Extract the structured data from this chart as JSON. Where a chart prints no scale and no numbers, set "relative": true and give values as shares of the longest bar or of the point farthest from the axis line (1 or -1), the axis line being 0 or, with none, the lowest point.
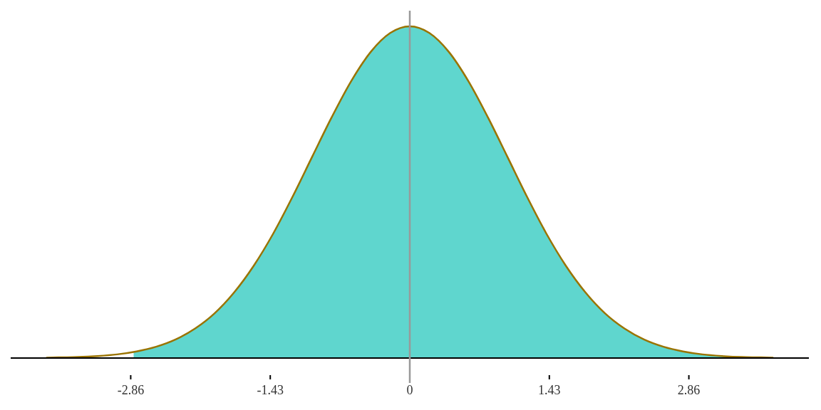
{
  "chart_data": {
    "type": "area",
    "relative": true,
    "xlim": [
      -4.09,
      4.09
    ],
    "xticks": [
      -2.86,
      -1.43,
      0,
      1.43,
      2.86
    ],
    "series": [
      {
        "color": "#5fd6ce",
        "x": [
          -2.83,
          -2.6,
          -2.4,
          -2.2,
          -2.0,
          -1.8,
          -1.6,
          -1.4,
          -1.2,
          -1.0,
          -0.8,
          -0.6,
          -0.4,
          -0.2,
          0,
          0.2,
          0.4,
          0.6,
          0.8,
          1.0,
          1.2,
          1.4,
          1.6,
          1.8,
          2.0,
          2.2,
          2.4,
          2.6,
          2.8,
          3.0,
          3.2,
          3.4,
          3.6,
          3.72
        ],
        "values": [
          0.018,
          0.034,
          0.056,
          0.089,
          0.135,
          0.198,
          0.278,
          0.375,
          0.487,
          0.607,
          0.726,
          0.835,
          0.923,
          0.98,
          1,
          0.98,
          0.923,
          0.835,
          0.726,
          0.607,
          0.487,
          0.375,
          0.278,
          0.198,
          0.135,
          0.089,
          0.056,
          0.034,
          0.02,
          0.011,
          0.006,
          0.003,
          0.002,
          0.001
        ]
      },
      {
        "type": "line",
        "color": "#9a7300",
        "x": [
          -3.72,
          -3.6,
          -3.4,
          -3.2,
          -3.0,
          -2.8,
          -2.6,
          -2.4,
          -2.2,
          -2.0,
          -1.8,
          -1.6,
          -1.4,
          -1.2,
          -1.0,
          -0.8,
          -0.6,
          -0.4,
          -0.2,
          0,
          0.2,
          0.4,
          0.6,
          0.8,
          1.0,
          1.2,
          1.4,
          1.6,
          1.8,
          2.0,
          2.2,
          2.4,
          2.6,
          2.8,
          3.0,
          3.2,
          3.4,
          3.6,
          3.72
        ],
        "values": [
          0.001,
          0.002,
          0.003,
          0.006,
          0.011,
          0.02,
          0.034,
          0.056,
          0.089,
          0.135,
          0.198,
          0.278,
          0.375,
          0.487,
          0.607,
          0.726,
          0.835,
          0.923,
          0.98,
          1,
          0.98,
          0.923,
          0.835,
          0.726,
          0.607,
          0.487,
          0.375,
          0.278,
          0.198,
          0.135,
          0.089,
          0.056,
          0.034,
          0.02,
          0.011,
          0.006,
          0.003,
          0.002,
          0.001
        ]
      }
    ],
    "ref_lines": [
      {
        "axis": "x",
        "value": 0,
        "color": "#999999"
      }
    ]
  }
}
